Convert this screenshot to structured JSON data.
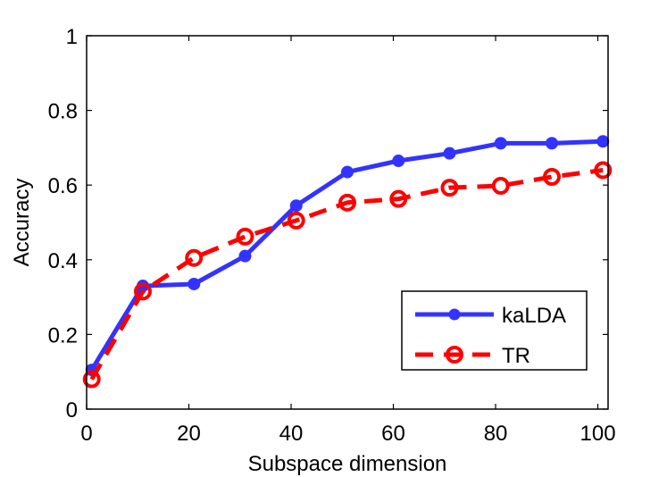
{
  "chart_data": {
    "type": "line",
    "xlabel": "Subspace dimension",
    "ylabel": "Accuracy",
    "xlim": [
      0,
      102
    ],
    "ylim": [
      0,
      1
    ],
    "xticks": [
      0,
      20,
      40,
      60,
      80,
      100
    ],
    "yticks": [
      0,
      0.2,
      0.4,
      0.6,
      0.8,
      1
    ],
    "ytick_labels": [
      "0",
      "0.2",
      "0.4",
      "0.6",
      "0.8",
      "1"
    ],
    "xtick_labels": [
      "0",
      "20",
      "40",
      "60",
      "80",
      "100"
    ],
    "grid": false,
    "legend_position": "lower-right",
    "x": [
      1,
      11,
      21,
      31,
      41,
      51,
      61,
      71,
      81,
      91,
      101
    ],
    "series": [
      {
        "name": "kaLDA",
        "color": "#3333ff",
        "line_style": "solid",
        "marker": "filled-circle",
        "values": [
          0.105,
          0.33,
          0.335,
          0.41,
          0.545,
          0.635,
          0.665,
          0.685,
          0.712,
          0.712,
          0.717
        ]
      },
      {
        "name": "TR",
        "color": "#ff0000",
        "line_style": "dashed",
        "marker": "open-circle",
        "values": [
          0.08,
          0.315,
          0.405,
          0.462,
          0.505,
          0.553,
          0.563,
          0.593,
          0.598,
          0.622,
          0.64
        ]
      }
    ]
  }
}
